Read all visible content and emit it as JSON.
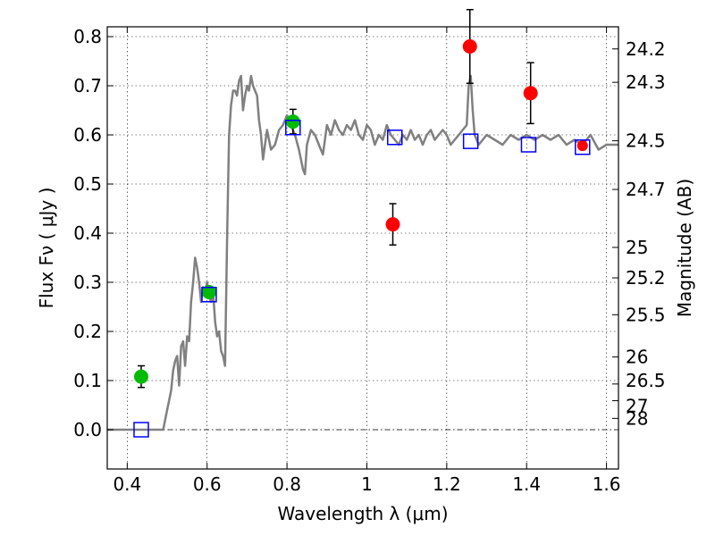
{
  "chart_data": {
    "type": "scatter",
    "xlabel": "Wavelength  λ (μm)",
    "ylabel": "Flux  Fν  ( μJy )",
    "ylabel2": "Magnitude (AB)",
    "xlim": [
      0.35,
      1.63
    ],
    "ylim": [
      -0.08,
      0.82
    ],
    "grid": true,
    "x_ticks": [
      0.4,
      0.6,
      0.8,
      1.0,
      1.2,
      1.4,
      1.6
    ],
    "x_tick_labels": [
      "0.4",
      "0.6",
      "0.8",
      "1",
      "1.2",
      "1.4",
      "1.6"
    ],
    "y_ticks": [
      0.0,
      0.1,
      0.2,
      0.3,
      0.4,
      0.5,
      0.6,
      0.7,
      0.8
    ],
    "y_tick_labels": [
      "0.0",
      "0.1",
      "0.2",
      "0.3",
      "0.4",
      "0.5",
      "0.6",
      "0.7",
      "0.8"
    ],
    "right_ticks": [
      {
        "label": "24.2",
        "flux": 0.775
      },
      {
        "label": "24.3",
        "flux": 0.707
      },
      {
        "label": "24.5",
        "flux": 0.588
      },
      {
        "label": "24.7",
        "flux": 0.489
      },
      {
        "label": "25",
        "flux": 0.371
      },
      {
        "label": "25.2",
        "flux": 0.309
      },
      {
        "label": "25.5",
        "flux": 0.234
      },
      {
        "label": "26",
        "flux": 0.148
      },
      {
        "label": "26.5",
        "flux": 0.093
      },
      {
        "label": "27",
        "flux": 0.059
      },
      {
        "label": "28",
        "flux": 0.023
      }
    ],
    "model_spectrum": {
      "color": "#808080",
      "x": [
        0.35,
        0.49,
        0.5,
        0.51,
        0.515,
        0.52,
        0.525,
        0.53,
        0.535,
        0.54,
        0.545,
        0.55,
        0.555,
        0.56,
        0.565,
        0.57,
        0.575,
        0.58,
        0.585,
        0.59,
        0.595,
        0.6,
        0.605,
        0.61,
        0.615,
        0.62,
        0.625,
        0.63,
        0.635,
        0.64,
        0.645,
        0.65,
        0.655,
        0.66,
        0.665,
        0.67,
        0.675,
        0.68,
        0.685,
        0.69,
        0.695,
        0.7,
        0.705,
        0.71,
        0.715,
        0.72,
        0.725,
        0.73,
        0.735,
        0.74,
        0.745,
        0.75,
        0.755,
        0.76,
        0.77,
        0.78,
        0.79,
        0.8,
        0.81,
        0.82,
        0.83,
        0.84,
        0.845,
        0.85,
        0.86,
        0.87,
        0.88,
        0.89,
        0.9,
        0.91,
        0.92,
        0.93,
        0.94,
        0.95,
        0.96,
        0.97,
        0.98,
        0.99,
        1.0,
        1.01,
        1.02,
        1.03,
        1.04,
        1.05,
        1.06,
        1.07,
        1.08,
        1.09,
        1.1,
        1.11,
        1.12,
        1.13,
        1.14,
        1.15,
        1.16,
        1.17,
        1.18,
        1.19,
        1.2,
        1.21,
        1.22,
        1.23,
        1.24,
        1.25,
        1.255,
        1.26,
        1.265,
        1.27,
        1.28,
        1.29,
        1.3,
        1.32,
        1.34,
        1.36,
        1.38,
        1.4,
        1.42,
        1.44,
        1.46,
        1.48,
        1.5,
        1.52,
        1.54,
        1.56,
        1.58,
        1.6,
        1.63
      ],
      "y": [
        0.0,
        0.0,
        0.04,
        0.08,
        0.12,
        0.14,
        0.15,
        0.09,
        0.17,
        0.18,
        0.13,
        0.19,
        0.18,
        0.26,
        0.3,
        0.35,
        0.33,
        0.3,
        0.26,
        0.29,
        0.28,
        0.3,
        0.27,
        0.26,
        0.28,
        0.22,
        0.19,
        0.2,
        0.16,
        0.15,
        0.13,
        0.39,
        0.6,
        0.66,
        0.69,
        0.69,
        0.68,
        0.71,
        0.72,
        0.65,
        0.68,
        0.7,
        0.69,
        0.72,
        0.7,
        0.69,
        0.68,
        0.63,
        0.6,
        0.55,
        0.58,
        0.61,
        0.59,
        0.57,
        0.58,
        0.61,
        0.62,
        0.64,
        0.62,
        0.6,
        0.57,
        0.53,
        0.52,
        0.58,
        0.61,
        0.6,
        0.58,
        0.56,
        0.62,
        0.6,
        0.63,
        0.61,
        0.6,
        0.62,
        0.61,
        0.63,
        0.6,
        0.59,
        0.62,
        0.61,
        0.58,
        0.6,
        0.59,
        0.62,
        0.6,
        0.59,
        0.58,
        0.6,
        0.59,
        0.61,
        0.59,
        0.6,
        0.58,
        0.6,
        0.61,
        0.59,
        0.6,
        0.61,
        0.6,
        0.58,
        0.59,
        0.6,
        0.61,
        0.62,
        0.7,
        0.72,
        0.65,
        0.6,
        0.58,
        0.59,
        0.6,
        0.59,
        0.58,
        0.6,
        0.59,
        0.6,
        0.59,
        0.6,
        0.59,
        0.6,
        0.58,
        0.59,
        0.58,
        0.6,
        0.57,
        0.58,
        0.58
      ]
    },
    "series": [
      {
        "marker": "circle",
        "color": "#00bb00",
        "points": [
          {
            "x": 0.435,
            "y": 0.108,
            "err": 0.022
          },
          {
            "x": 0.605,
            "y": 0.28,
            "err": 0.0
          },
          {
            "x": 0.815,
            "y": 0.627,
            "err": 0.025
          }
        ]
      },
      {
        "marker": "circle",
        "color": "#ff0000",
        "points": [
          {
            "x": 1.065,
            "y": 0.418,
            "err": 0.042
          },
          {
            "x": 1.258,
            "y": 0.78,
            "err": 0.075
          },
          {
            "x": 1.41,
            "y": 0.685,
            "err": 0.062
          }
        ]
      },
      {
        "marker": "circle",
        "color": "#ff0000",
        "points": [
          {
            "x": 1.54,
            "y": 0.578,
            "err": 0.0
          }
        ]
      },
      {
        "marker": "open-square",
        "color": "#0000ff",
        "points": [
          {
            "x": 0.435,
            "y": 0.0
          },
          {
            "x": 0.605,
            "y": 0.275
          },
          {
            "x": 0.815,
            "y": 0.615
          },
          {
            "x": 1.07,
            "y": 0.595
          },
          {
            "x": 1.26,
            "y": 0.587
          },
          {
            "x": 1.405,
            "y": 0.58
          },
          {
            "x": 1.54,
            "y": 0.575
          }
        ]
      }
    ]
  }
}
